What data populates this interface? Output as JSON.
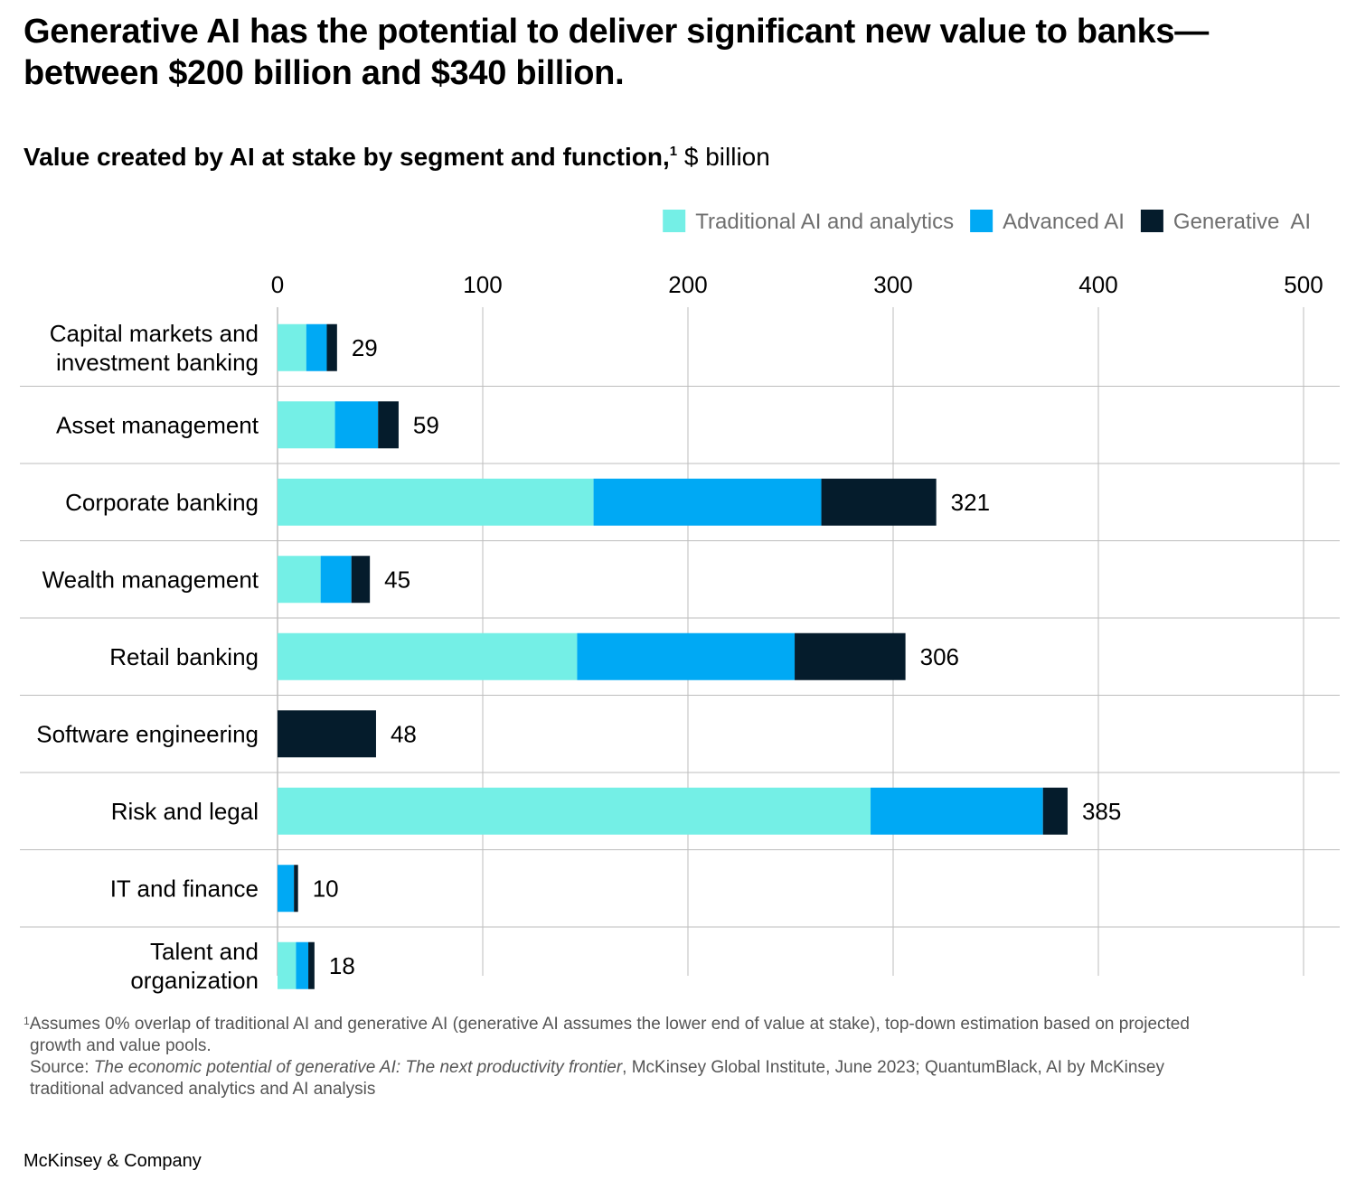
{
  "headline": "Generative AI has the potential to deliver significant new value to banks—between $200 billion and $340 billion.",
  "subtitle": {
    "main": "Value created by AI at stake by segment and function,",
    "footnote_marker": "1",
    "unit": " $ billion"
  },
  "colors": {
    "traditional": "#74EFE6",
    "advanced": "#00A9F4",
    "generative": "#051C2C",
    "grid": "#bdbdbd",
    "separator": "#bdbdbd"
  },
  "chart_data": {
    "type": "bar",
    "orientation": "horizontal",
    "stacked": true,
    "categories": [
      "Capital markets and\ninvestment banking",
      "Asset management",
      "Corporate banking",
      "Wealth management",
      "Retail banking",
      "Software engineering",
      "Risk and legal",
      "IT and finance",
      "Talent and\norganization"
    ],
    "series": [
      {
        "name": "Traditional AI and analytics",
        "color": "#74EFE6",
        "values": [
          14,
          28,
          154,
          21,
          146,
          0,
          289,
          0,
          9
        ]
      },
      {
        "name": "Advanced AI",
        "color": "#00A9F4",
        "values": [
          10,
          21,
          111,
          15,
          106,
          0,
          84,
          8,
          6
        ]
      },
      {
        "name": "Generative  AI",
        "color": "#051C2C",
        "values": [
          5,
          10,
          56,
          9,
          54,
          48,
          12,
          2,
          3
        ]
      }
    ],
    "totals": [
      "29",
      "59",
      "321",
      "45",
      "306",
      "48",
      "385",
      "10",
      "18"
    ],
    "xticks": [
      "0",
      "100",
      "200",
      "300",
      "400",
      "500"
    ],
    "xlim": [
      0,
      500
    ],
    "legend_position": "top-right",
    "grid": true
  },
  "footnotes": {
    "note_marker": "1",
    "note_text_1": "Assumes 0% overlap of traditional AI and generative AI (generative AI assumes the lower end of value at stake), top-down estimation based on projected",
    "note_text_2": "growth and value pools.",
    "source_label": "Source: ",
    "source_title": "The economic potential of generative AI: The next productivity frontier",
    "source_rest_1": ", McKinsey Global Institute, June 2023; QuantumBlack, AI by McKinsey",
    "source_rest_2": "traditional advanced analytics and AI analysis"
  },
  "brand": "McKinsey & Company"
}
